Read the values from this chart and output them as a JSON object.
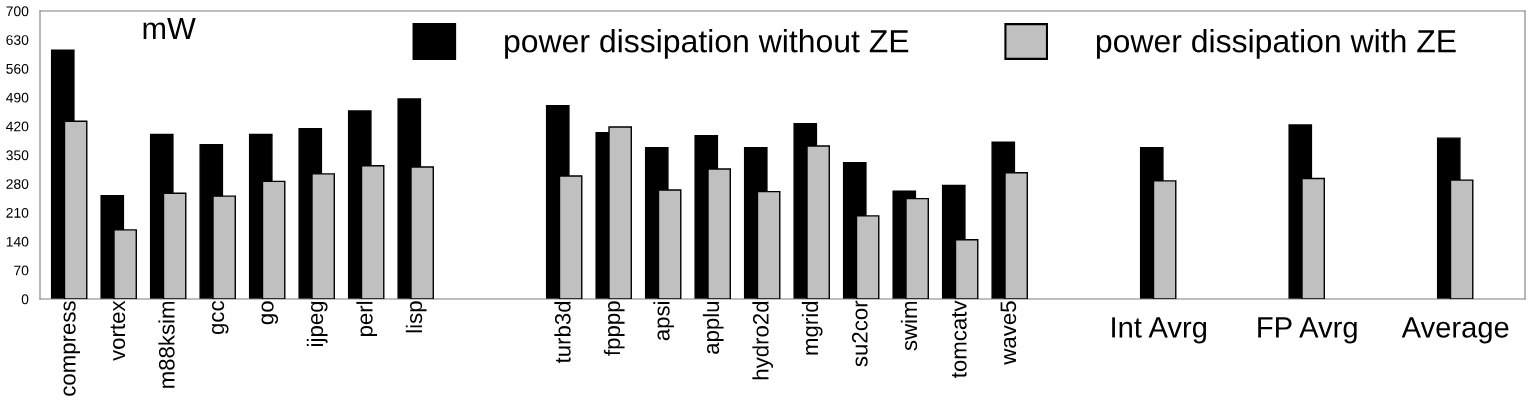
{
  "chart_data": {
    "type": "bar",
    "ylabel": "mW",
    "categories": [
      "compress",
      "vortex",
      "m88ksim",
      "gcc",
      "go",
      "ijpeg",
      "perl",
      "lisp",
      null,
      null,
      "turb3d",
      "fpppp",
      "apsi",
      "applu",
      "hydro2d",
      "mgrid",
      "su2cor",
      "swim",
      "tomcatv",
      "wave5",
      null,
      null,
      "Int Avrg",
      null,
      null,
      "FP Avrg",
      null,
      null,
      "Average"
    ],
    "series": [
      {
        "name": "power dissipation without ZE",
        "color": "#000000",
        "values": [
          605,
          251,
          400,
          375,
          400,
          414,
          457,
          486,
          null,
          null,
          470,
          404,
          368,
          397,
          368,
          426,
          331,
          262,
          276,
          381,
          null,
          null,
          368,
          null,
          null,
          423,
          null,
          null,
          391
        ]
      },
      {
        "name": "power dissipation with ZE",
        "color": "#c0c0c0",
        "values": [
          432,
          168,
          257,
          250,
          286,
          304,
          324,
          321,
          null,
          null,
          299,
          418,
          265,
          316,
          261,
          372,
          202,
          244,
          144,
          307,
          null,
          null,
          287,
          null,
          null,
          293,
          null,
          null,
          289
        ]
      }
    ],
    "ylim": [
      0,
      700
    ],
    "yticks": [
      0,
      70,
      140,
      210,
      280,
      350,
      420,
      490,
      560,
      630,
      700
    ],
    "grid": false,
    "legend": "top right"
  }
}
